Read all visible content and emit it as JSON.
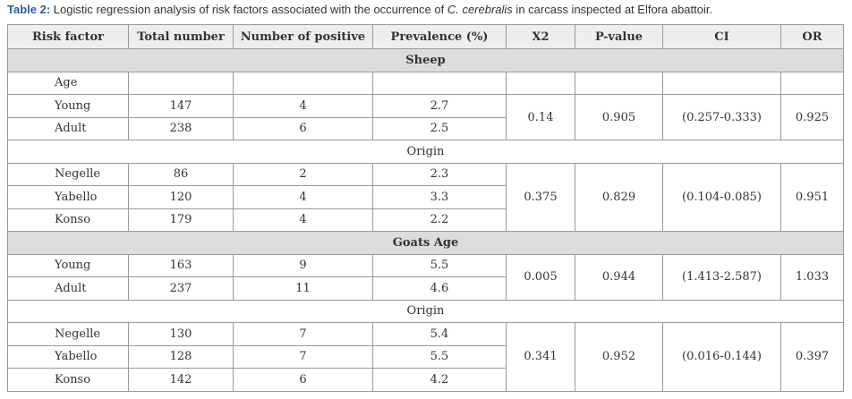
{
  "caption": {
    "label": "Table 2:",
    "text_before": "Logistic regression analysis of risk factors associated with the occurrence of ",
    "species": "C. cerebralis",
    "text_after": " in carcass inspected at Elfora abattoir."
  },
  "table": {
    "columns": [
      "Risk factor",
      "Total number",
      "Number of positive",
      "Prevalence (%)",
      "X2",
      "P-value",
      "CI",
      "OR"
    ],
    "sections": [
      {
        "title": "Sheep",
        "groups": [
          {
            "cell_heading": "Age",
            "rows": [
              [
                "Young",
                "147",
                "4",
                "2.7"
              ],
              [
                "Adult",
                "238",
                "6",
                "2.5"
              ]
            ],
            "stats": [
              "0.14",
              "0.905",
              "(0.257-0.333)",
              "0.925"
            ]
          },
          {
            "heading": "Origin",
            "rows": [
              [
                "Negelle",
                "86",
                "2",
                "2.3"
              ],
              [
                "Yabello",
                "120",
                "4",
                "3.3"
              ],
              [
                "Konso",
                "179",
                "4",
                "2.2"
              ]
            ],
            "stats": [
              "0.375",
              "0.829",
              "(0.104-0.085)",
              "0.951"
            ]
          }
        ]
      },
      {
        "title": "Goats Age",
        "groups": [
          {
            "rows": [
              [
                "Young",
                "163",
                "9",
                "5.5"
              ],
              [
                "Adult",
                "237",
                "11",
                "4.6"
              ]
            ],
            "stats": [
              "0.005",
              "0.944",
              "(1.413-2.587)",
              "1.033"
            ]
          },
          {
            "heading": "Origin",
            "rows": [
              [
                "Negelle",
                "130",
                "7",
                "5.4"
              ],
              [
                "Yabello",
                "128",
                "7",
                "5.5"
              ],
              [
                "Konso",
                "142",
                "6",
                "4.2"
              ]
            ],
            "stats": [
              "0.341",
              "0.952",
              "(0.016-0.144)",
              "0.397"
            ]
          }
        ]
      }
    ]
  }
}
